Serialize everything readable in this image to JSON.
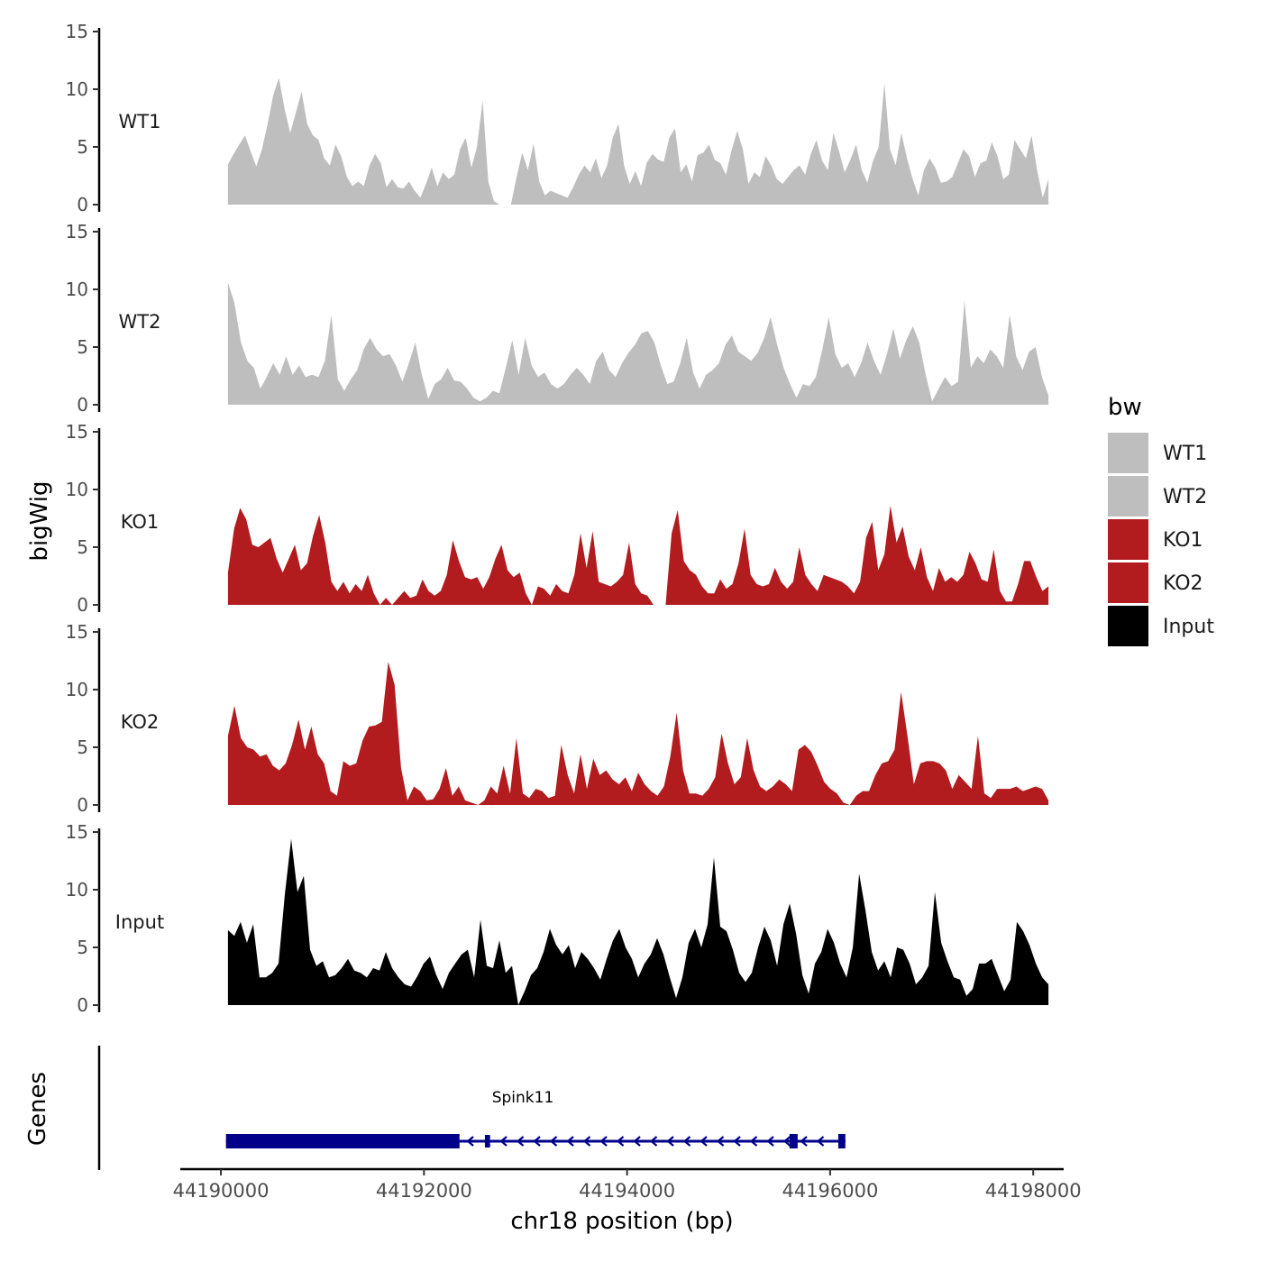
{
  "chart_data": {
    "type": "area",
    "y_axis_title": "bigWig",
    "x_axis_title": "chr18 position (bp)",
    "genes_axis_title": "Genes",
    "xlim": [
      44189600,
      44198300
    ],
    "ylim": [
      0,
      15
    ],
    "y_ticks": [
      0,
      5,
      10,
      15
    ],
    "y_tick_labels": [
      "0",
      "5",
      "10",
      "15"
    ],
    "x_ticks": [
      44190000,
      44192000,
      44194000,
      44196000,
      44198000
    ],
    "x_tick_labels": [
      "44190000",
      "44192000",
      "44194000",
      "44196000",
      "44198000"
    ],
    "legend": {
      "title": "bw",
      "position": "right",
      "entries": [
        {
          "label": "WT1",
          "color": "#bebebe"
        },
        {
          "label": "WT2",
          "color": "#bebebe"
        },
        {
          "label": "KO1",
          "color": "#b21c1f"
        },
        {
          "label": "KO2",
          "color": "#b21c1f"
        },
        {
          "label": "Input",
          "color": "#000000"
        }
      ]
    },
    "x_start": 44190070,
    "x_end": 44198150,
    "tracks": [
      {
        "name": "WT1",
        "color": "#bebebe",
        "label": "WT1",
        "values": [
          3.5,
          4.4,
          5.2,
          6.0,
          4.6,
          3.3,
          4.8,
          7.0,
          9.5,
          11.0,
          8.3,
          6.2,
          8.0,
          9.8,
          7.0,
          6.0,
          5.6,
          4.0,
          3.4,
          5.2,
          4.2,
          2.4,
          1.6,
          2.0,
          1.6,
          3.4,
          4.4,
          3.6,
          1.5,
          2.2,
          1.5,
          1.4,
          2.0,
          1.2,
          0.6,
          1.8,
          3.2,
          1.6,
          2.8,
          2.2,
          2.6,
          4.8,
          5.8,
          3.2,
          5.0,
          9.0,
          2.0,
          0.3,
          0.0,
          0.0,
          0.0,
          2.4,
          4.5,
          3.0,
          5.3,
          2.0,
          0.8,
          1.2,
          1.0,
          0.8,
          0.6,
          1.5,
          2.6,
          3.4,
          2.8,
          4.0,
          2.3,
          3.4,
          5.8,
          7.0,
          3.4,
          1.8,
          2.9,
          1.6,
          3.6,
          4.4,
          3.9,
          3.7,
          5.8,
          6.6,
          2.8,
          3.5,
          2.0,
          4.3,
          4.5,
          5.2,
          3.9,
          3.6,
          2.6,
          4.7,
          6.4,
          4.8,
          1.8,
          2.8,
          2.4,
          4.2,
          3.4,
          2.2,
          1.8,
          2.4,
          3.0,
          3.4,
          2.6,
          4.4,
          5.6,
          3.8,
          3.0,
          6.2,
          4.6,
          2.8,
          3.9,
          5.2,
          3.0,
          1.9,
          3.8,
          5.0,
          10.5,
          4.8,
          3.4,
          6.2,
          4.0,
          2.2,
          0.8,
          3.0,
          4.0,
          3.2,
          1.9,
          2.0,
          2.4,
          3.6,
          4.8,
          4.2,
          2.4,
          3.6,
          3.8,
          5.4,
          4.2,
          2.2,
          2.6,
          5.6,
          4.8,
          4.0,
          6.0,
          3.0,
          0.6,
          2.2
        ]
      },
      {
        "name": "WT2",
        "color": "#bebebe",
        "label": "WT2",
        "values": [
          10.6,
          8.8,
          5.4,
          3.8,
          3.2,
          1.4,
          2.4,
          3.6,
          2.6,
          4.2,
          2.6,
          3.4,
          2.4,
          2.6,
          2.4,
          3.8,
          7.8,
          2.2,
          1.2,
          2.2,
          3.0,
          4.8,
          5.8,
          4.8,
          4.2,
          4.4,
          3.4,
          2.0,
          3.6,
          5.4,
          2.6,
          0.5,
          1.8,
          2.2,
          3.2,
          2.1,
          2.0,
          1.4,
          0.6,
          0.3,
          0.6,
          1.2,
          1.0,
          3.2,
          5.6,
          2.6,
          5.8,
          3.4,
          2.4,
          2.8,
          1.8,
          1.4,
          1.8,
          2.6,
          3.2,
          2.6,
          1.8,
          3.8,
          4.6,
          3.0,
          2.4,
          3.6,
          4.5,
          5.2,
          6.2,
          6.4,
          5.4,
          3.4,
          1.8,
          2.0,
          3.6,
          5.8,
          2.8,
          1.4,
          2.6,
          3.0,
          3.6,
          5.2,
          6.0,
          4.6,
          4.2,
          3.8,
          4.5,
          5.8,
          7.6,
          5.2,
          3.2,
          1.8,
          0.6,
          1.8,
          1.6,
          2.4,
          4.8,
          7.6,
          4.4,
          3.2,
          3.6,
          2.4,
          3.6,
          5.4,
          3.8,
          2.6,
          4.4,
          6.6,
          4.0,
          5.6,
          6.8,
          5.4,
          2.6,
          0.3,
          1.4,
          2.4,
          1.6,
          2.0,
          9.0,
          3.2,
          4.2,
          3.6,
          4.8,
          4.2,
          3.2,
          7.8,
          4.2,
          3.0,
          4.6,
          5.0,
          2.4,
          0.8
        ]
      },
      {
        "name": "KO1",
        "color": "#b21c1f",
        "label": "KO1",
        "values": [
          2.8,
          6.6,
          8.4,
          7.4,
          5.2,
          5.0,
          5.4,
          5.8,
          4.0,
          2.8,
          4.0,
          5.2,
          3.0,
          3.6,
          6.0,
          7.8,
          5.4,
          2.0,
          1.2,
          2.0,
          1.0,
          1.8,
          1.2,
          2.6,
          1.0,
          0.0,
          0.6,
          0.0,
          0.6,
          1.2,
          0.6,
          0.8,
          2.2,
          1.2,
          0.8,
          1.2,
          2.6,
          5.6,
          3.8,
          2.4,
          2.2,
          2.4,
          1.4,
          2.4,
          4.0,
          5.2,
          3.0,
          2.4,
          2.8,
          1.0,
          0.0,
          1.6,
          1.4,
          0.8,
          1.8,
          1.2,
          1.0,
          2.6,
          6.2,
          3.2,
          6.4,
          2.0,
          1.8,
          1.6,
          2.0,
          2.6,
          5.4,
          1.8,
          1.0,
          0.8,
          0.0,
          0.0,
          0.0,
          6.2,
          8.2,
          3.8,
          3.0,
          2.6,
          1.6,
          1.0,
          1.0,
          2.2,
          1.4,
          1.8,
          3.6,
          6.6,
          2.6,
          1.8,
          1.6,
          1.8,
          3.2,
          2.0,
          1.4,
          2.0,
          5.0,
          2.6,
          1.8,
          1.2,
          2.6,
          2.4,
          2.2,
          2.0,
          1.6,
          1.0,
          2.0,
          5.8,
          7.2,
          3.0,
          4.4,
          8.6,
          5.4,
          6.8,
          4.2,
          3.0,
          5.0,
          2.4,
          1.2,
          3.2,
          2.0,
          2.4,
          2.0,
          2.6,
          4.6,
          3.6,
          2.2,
          2.0,
          4.8,
          1.2,
          0.3,
          0.3,
          1.8,
          3.8,
          3.8,
          2.4,
          1.2,
          1.6
        ]
      },
      {
        "name": "KO2",
        "color": "#b21c1f",
        "label": "KO2",
        "values": [
          6.0,
          8.6,
          5.8,
          5.0,
          4.8,
          4.2,
          4.4,
          3.4,
          3.0,
          3.6,
          5.2,
          7.4,
          4.8,
          6.8,
          4.4,
          3.6,
          1.2,
          0.8,
          3.8,
          3.4,
          3.6,
          5.6,
          6.8,
          6.9,
          7.2,
          12.4,
          10.4,
          3.2,
          0.4,
          1.6,
          1.2,
          0.4,
          0.5,
          1.4,
          3.2,
          0.8,
          1.6,
          0.4,
          0.2,
          0.0,
          0.4,
          1.6,
          1.0,
          3.4,
          1.0,
          5.8,
          1.0,
          0.6,
          1.4,
          1.2,
          0.6,
          0.8,
          5.2,
          2.6,
          1.0,
          4.4,
          1.4,
          4.0,
          2.6,
          3.0,
          2.2,
          1.8,
          2.4,
          1.2,
          2.8,
          1.8,
          1.2,
          0.8,
          1.6,
          4.2,
          8.0,
          3.0,
          1.0,
          1.0,
          0.8,
          1.4,
          2.4,
          6.2,
          3.6,
          1.8,
          2.4,
          5.8,
          3.0,
          1.6,
          1.2,
          1.6,
          2.2,
          1.8,
          1.2,
          4.8,
          5.2,
          4.6,
          3.4,
          2.0,
          1.4,
          1.0,
          0.2,
          0.0,
          0.8,
          1.2,
          1.2,
          2.6,
          3.6,
          3.8,
          4.8,
          9.8,
          6.0,
          1.8,
          3.6,
          3.8,
          3.8,
          3.6,
          3.0,
          1.4,
          2.6,
          2.0,
          1.4,
          6.0,
          1.0,
          0.6,
          1.4,
          1.4,
          1.4,
          1.6,
          1.2,
          1.4,
          1.6,
          1.4,
          0.4
        ]
      },
      {
        "name": "Input",
        "color": "#000000",
        "label": "Input",
        "values": [
          6.5,
          6.0,
          7.2,
          5.4,
          7.0,
          2.4,
          2.4,
          2.8,
          3.6,
          9.6,
          14.4,
          9.8,
          11.2,
          4.8,
          3.4,
          3.8,
          2.4,
          2.6,
          3.2,
          4.0,
          3.0,
          2.8,
          2.4,
          3.2,
          3.0,
          4.6,
          3.2,
          2.4,
          1.8,
          1.6,
          2.5,
          3.6,
          4.2,
          2.6,
          1.4,
          2.8,
          3.6,
          4.4,
          4.8,
          2.4,
          7.4,
          3.4,
          3.2,
          5.6,
          2.8,
          3.4,
          0.0,
          1.2,
          2.6,
          3.2,
          4.6,
          6.6,
          5.2,
          4.4,
          5.2,
          3.2,
          4.6,
          4.0,
          3.2,
          2.2,
          4.0,
          5.6,
          6.6,
          5.0,
          4.0,
          2.4,
          3.6,
          4.4,
          5.8,
          4.4,
          2.4,
          0.6,
          2.4,
          5.4,
          6.6,
          5.0,
          7.0,
          12.8,
          6.8,
          6.4,
          4.8,
          2.8,
          2.0,
          2.8,
          5.0,
          6.8,
          5.6,
          3.4,
          7.0,
          8.8,
          6.2,
          2.6,
          1.0,
          3.6,
          4.6,
          6.6,
          5.4,
          3.6,
          2.4,
          5.0,
          11.4,
          8.2,
          4.6,
          3.0,
          3.8,
          2.4,
          5.0,
          4.8,
          3.6,
          1.8,
          2.4,
          3.4,
          9.8,
          5.4,
          3.8,
          2.4,
          2.2,
          0.8,
          1.4,
          3.6,
          3.6,
          4.0,
          2.6,
          1.2,
          2.2,
          7.2,
          6.4,
          5.2,
          3.6,
          2.4,
          1.8
        ]
      }
    ],
    "gene": {
      "name": "Spink11",
      "color": "#00008b",
      "strand": "-",
      "start": 44190050,
      "end": 44196150,
      "exons": [
        {
          "start": 44190050,
          "end": 44192350,
          "type": "thick"
        },
        {
          "start": 44192600,
          "end": 44192650,
          "type": "thin"
        },
        {
          "start": 44195600,
          "end": 44195680,
          "type": "thick"
        },
        {
          "start": 44196080,
          "end": 44196150,
          "type": "thick"
        }
      ]
    }
  }
}
